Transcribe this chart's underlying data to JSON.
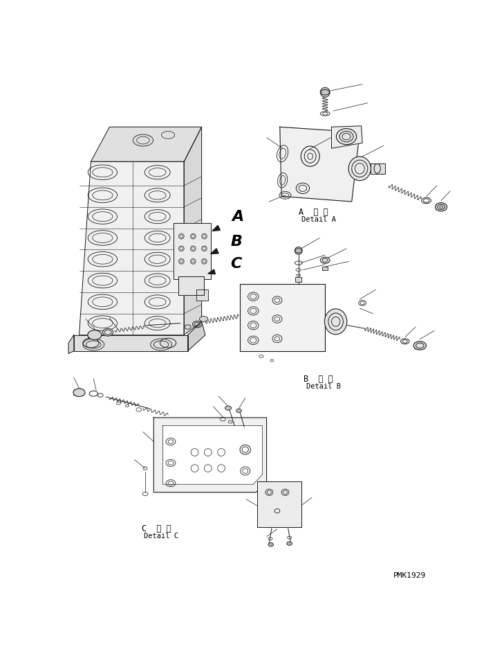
{
  "background_color": "#ffffff",
  "fig_width": 7.29,
  "fig_height": 9.5,
  "dpi": 100,
  "labels": {
    "detail_A_ja": "A  詳 細",
    "detail_A_en": "Detail A",
    "detail_B_ja": "B  詳 細",
    "detail_B_en": "Detail B",
    "detail_C_ja": "C  詳 細",
    "detail_C_en": "Detail C",
    "part_number": "PMK1929",
    "A": "A",
    "B": "B",
    "C": "C"
  },
  "line_color": "#1a1a1a",
  "line_width": 0.7,
  "text_color": "#000000"
}
